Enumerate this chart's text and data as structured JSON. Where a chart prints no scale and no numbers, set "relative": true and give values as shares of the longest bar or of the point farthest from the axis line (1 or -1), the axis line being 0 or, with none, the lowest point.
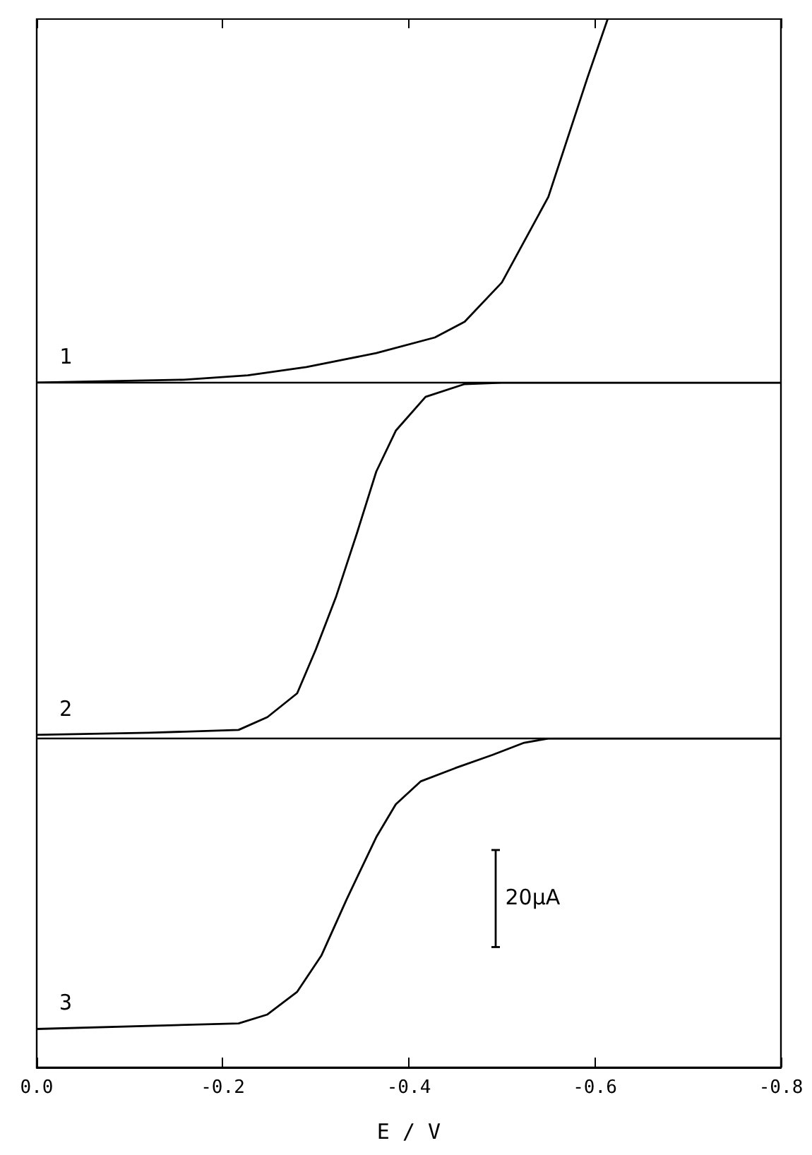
{
  "chart_data": [
    {
      "type": "line",
      "relative": true,
      "annotations": [
        "1"
      ],
      "xlim": [
        0,
        -0.8
      ],
      "xticks": [
        0,
        -0.2,
        -0.4,
        -0.6,
        -0.8
      ],
      "tick_labels": false,
      "marker": "none",
      "grid": false,
      "series": [
        {
          "color": "#000000",
          "x": [
            0,
            -0.158,
            -0.227,
            -0.29,
            -0.365,
            -0.428,
            -0.46,
            -0.5,
            -0.55,
            -0.592,
            -0.614
          ],
          "values": [
            0,
            0.008,
            0.02,
            0.043,
            0.081,
            0.124,
            0.167,
            0.275,
            0.51,
            0.837,
            1
          ]
        }
      ]
    },
    {
      "type": "line",
      "relative": true,
      "annotations": [
        "2"
      ],
      "xlim": [
        0,
        -0.8
      ],
      "tick_labels": false,
      "marker": "none",
      "grid": false,
      "series": [
        {
          "color": "#000000",
          "x": [
            0,
            -0.121,
            -0.217,
            -0.248,
            -0.28,
            -0.3,
            -0.322,
            -0.344,
            -0.365,
            -0.386,
            -0.418,
            -0.46,
            -0.5,
            -0.8
          ],
          "values": [
            0.01,
            0.016,
            0.024,
            0.06,
            0.127,
            0.25,
            0.4,
            0.575,
            0.75,
            0.865,
            0.96,
            0.996,
            1,
            1
          ]
        }
      ]
    },
    {
      "type": "line",
      "relative": true,
      "annotations": [
        "3",
        "20μA"
      ],
      "xlabel": "E / V",
      "xlim": [
        0,
        -0.8
      ],
      "xticks": [
        {
          "value": 0,
          "label": "0.0"
        },
        {
          "value": -0.2,
          "label": "-0.2"
        },
        {
          "value": -0.4,
          "label": "-0.4"
        },
        {
          "value": -0.6,
          "label": "-0.6"
        },
        {
          "value": -0.8,
          "label": "-0.8"
        }
      ],
      "tick_labels": "x",
      "marker": "none",
      "grid": false,
      "series": [
        {
          "color": "#000000",
          "x": [
            0,
            -0.217,
            -0.248,
            -0.28,
            -0.306,
            -0.333,
            -0.365,
            -0.386,
            -0.413,
            -0.45,
            -0.49,
            -0.524,
            -0.55,
            -0.8
          ],
          "values": [
            0.117,
            0.134,
            0.161,
            0.23,
            0.34,
            0.51,
            0.7,
            0.8,
            0.87,
            0.91,
            0.95,
            0.987,
            1,
            1
          ]
        }
      ]
    }
  ]
}
